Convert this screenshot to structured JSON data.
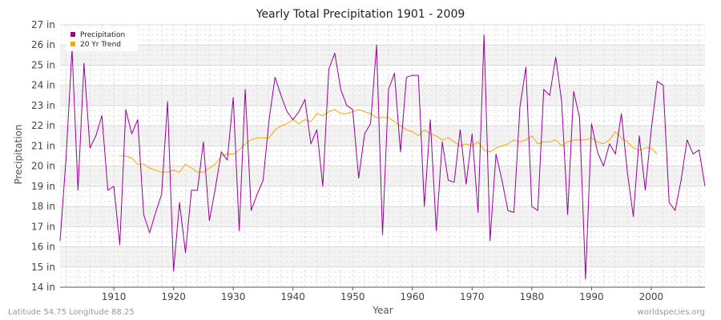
{
  "chart_data": {
    "type": "line",
    "title": "Yearly Total Precipitation 1901 - 2009",
    "xlabel": "Year",
    "ylabel": "Precipitation",
    "xlim": [
      1901,
      2009
    ],
    "ylim": [
      14,
      27
    ],
    "x_ticks": [
      1910,
      1920,
      1930,
      1940,
      1950,
      1960,
      1970,
      1980,
      1990,
      2000
    ],
    "x_tick_labels": [
      "1910",
      "1920",
      "1930",
      "1940",
      "1950",
      "1960",
      "1970",
      "1980",
      "1990",
      "2000"
    ],
    "y_ticks": [
      14,
      15,
      16,
      17,
      18,
      19,
      20,
      21,
      22,
      23,
      24,
      25,
      26,
      27
    ],
    "y_tick_labels": [
      "14 in",
      "15 in",
      "16 in",
      "17 in",
      "18 in",
      "19 in",
      "20 in",
      "21 in",
      "22 in",
      "23 in",
      "24 in",
      "25 in",
      "26 in",
      "27 in"
    ],
    "grid": true,
    "legend_position": "top-left",
    "series": [
      {
        "name": "Precipitation",
        "color": "#990099",
        "x_start": 1901,
        "values": [
          16.3,
          20.4,
          25.8,
          18.8,
          25.1,
          20.9,
          21.5,
          22.5,
          18.8,
          19.0,
          16.1,
          22.8,
          21.6,
          22.3,
          17.6,
          16.7,
          17.7,
          18.6,
          23.2,
          14.8,
          18.2,
          15.7,
          18.8,
          18.8,
          21.2,
          17.3,
          18.9,
          20.7,
          20.3,
          23.4,
          16.8,
          23.8,
          17.8,
          18.6,
          19.3,
          22.3,
          24.4,
          23.5,
          22.7,
          22.3,
          22.7,
          23.3,
          21.1,
          21.8,
          19.0,
          24.8,
          25.6,
          23.8,
          23.0,
          22.8,
          19.4,
          21.6,
          22.1,
          26.0,
          16.6,
          23.8,
          24.6,
          20.7,
          24.4,
          24.5,
          24.5,
          18.0,
          22.3,
          16.8,
          21.2,
          19.3,
          19.2,
          21.8,
          19.1,
          21.6,
          17.7,
          26.5,
          16.3,
          20.6,
          19.3,
          17.8,
          17.7,
          22.9,
          24.9,
          18.0,
          17.8,
          23.8,
          23.5,
          25.4,
          23.2,
          17.6,
          23.7,
          22.4,
          14.4,
          22.1,
          20.7,
          20.0,
          21.1,
          20.6,
          22.6,
          19.7,
          17.5,
          21.5,
          18.8,
          21.8,
          24.2,
          24.0,
          18.2,
          17.8,
          19.3,
          21.3,
          20.6,
          20.8,
          19.0
        ]
      },
      {
        "name": "20 Yr Trend",
        "color": "#ffa500",
        "x_start": 1911,
        "values": [
          20.5,
          20.5,
          20.4,
          20.1,
          20.1,
          19.9,
          19.8,
          19.7,
          19.7,
          19.8,
          19.7,
          20.1,
          19.9,
          19.7,
          19.7,
          19.9,
          20.1,
          20.5,
          20.6,
          20.6,
          20.8,
          21.1,
          21.3,
          21.4,
          21.4,
          21.4,
          21.8,
          22.0,
          22.1,
          22.3,
          22.1,
          22.3,
          22.2,
          22.6,
          22.5,
          22.7,
          22.8,
          22.6,
          22.6,
          22.7,
          22.8,
          22.7,
          22.6,
          22.4,
          22.4,
          22.4,
          22.2,
          22.0,
          21.8,
          21.7,
          21.5,
          21.8,
          21.6,
          21.5,
          21.3,
          21.4,
          21.2,
          21.0,
          21.1,
          21.0,
          21.2,
          20.8,
          20.7,
          20.9,
          21.0,
          21.1,
          21.3,
          21.2,
          21.3,
          21.5,
          21.1,
          21.2,
          21.2,
          21.3,
          21.0,
          21.2,
          21.3,
          21.3,
          21.3,
          21.4,
          21.2,
          21.1,
          21.3,
          21.7,
          21.4,
          21.2,
          20.9,
          20.8,
          20.9,
          20.9,
          20.6
        ]
      }
    ]
  },
  "footer": {
    "location": "Latitude 54.75 Longitude 88.25",
    "site": "worldspecies.org"
  }
}
